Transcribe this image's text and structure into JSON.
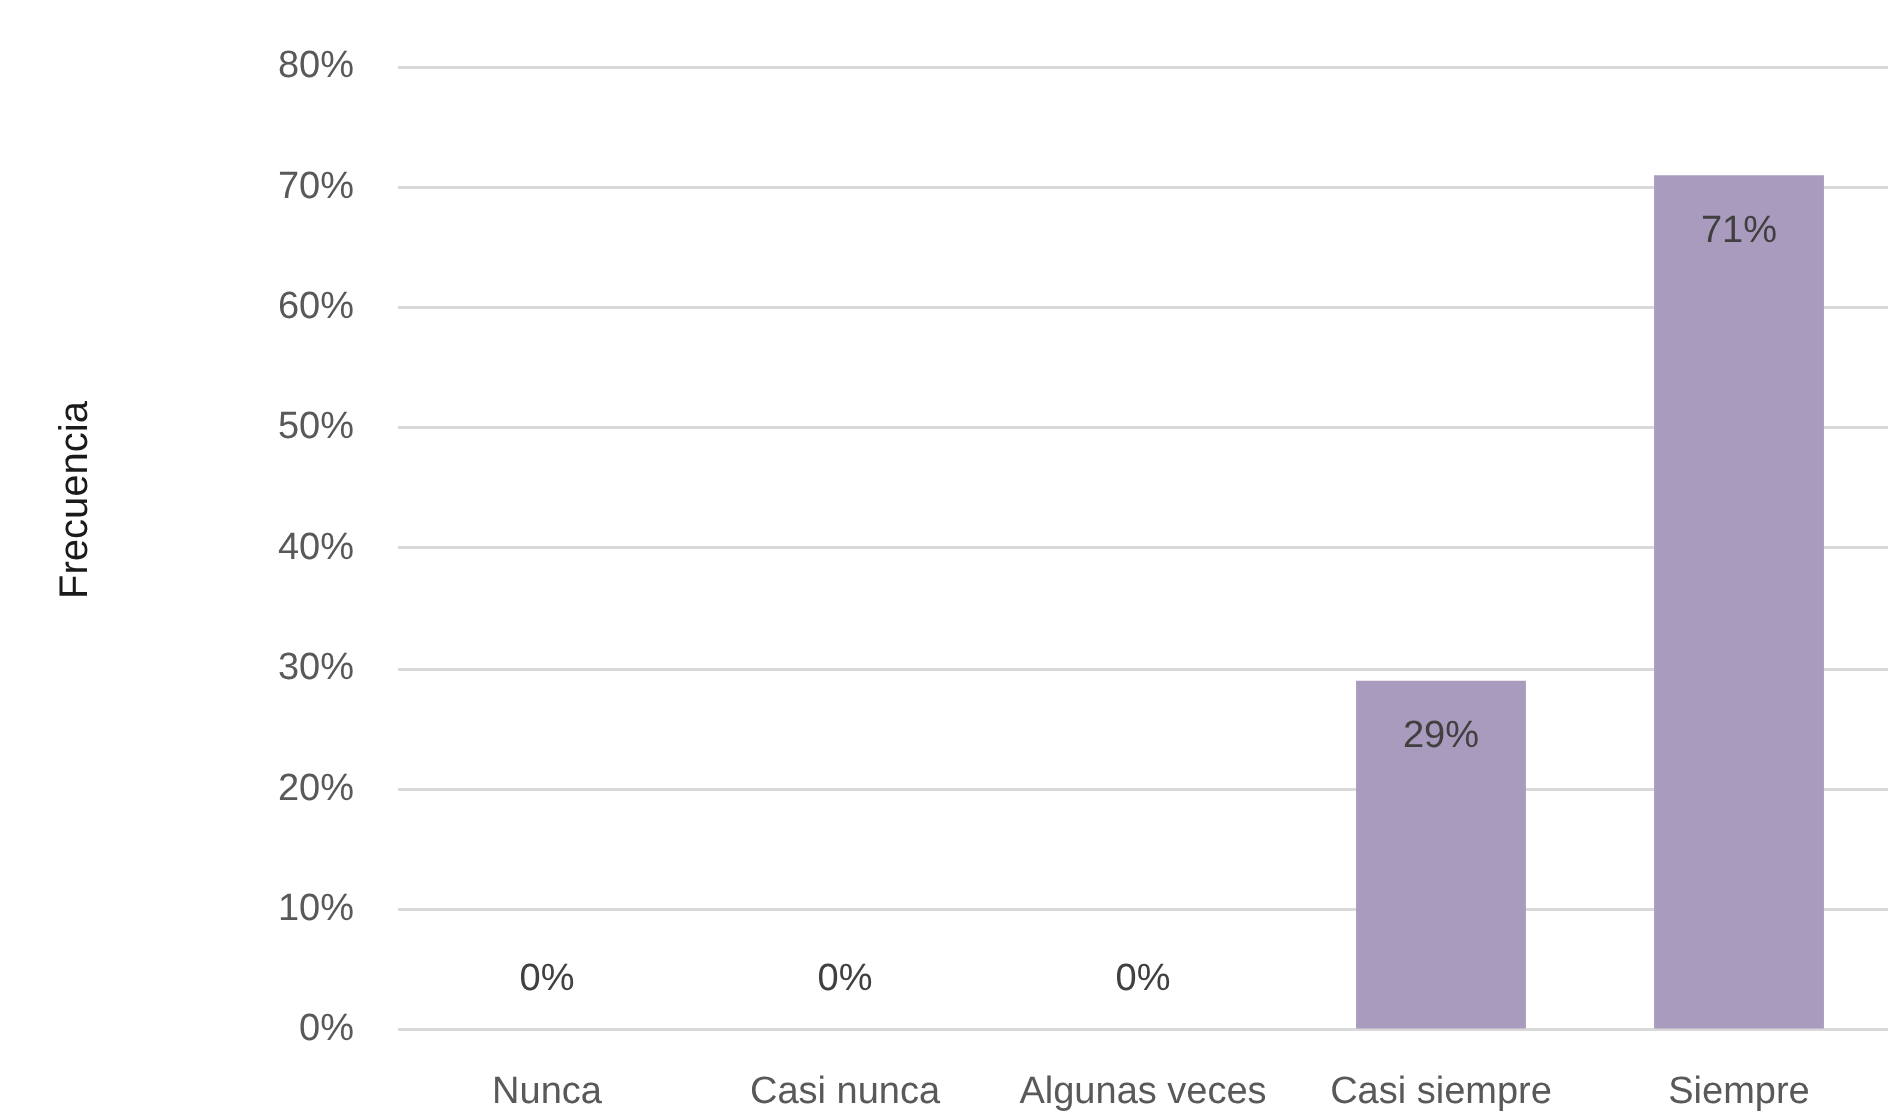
{
  "chart_data": {
    "type": "bar",
    "ylabel": "Frecuencia",
    "categories": [
      "Nunca",
      "Casi nunca",
      "Algunas veces",
      "Casi siempre",
      "Siempre"
    ],
    "values": [
      0,
      0,
      0,
      29,
      71
    ],
    "color": "#a99bbd",
    "value_labels": [
      "0%",
      "0%",
      "0%",
      "29%",
      "71%"
    ],
    "ylim": [
      0,
      80
    ],
    "yticks": [
      {
        "value": 0,
        "label": "0%"
      },
      {
        "value": 10,
        "label": "10%"
      },
      {
        "value": 20,
        "label": "20%"
      },
      {
        "value": 30,
        "label": "30%"
      },
      {
        "value": 40,
        "label": "40%"
      },
      {
        "value": 50,
        "label": "50%"
      },
      {
        "value": 60,
        "label": "60%"
      },
      {
        "value": 70,
        "label": "70%"
      },
      {
        "value": 80,
        "label": "80%"
      }
    ],
    "grid": "y"
  }
}
